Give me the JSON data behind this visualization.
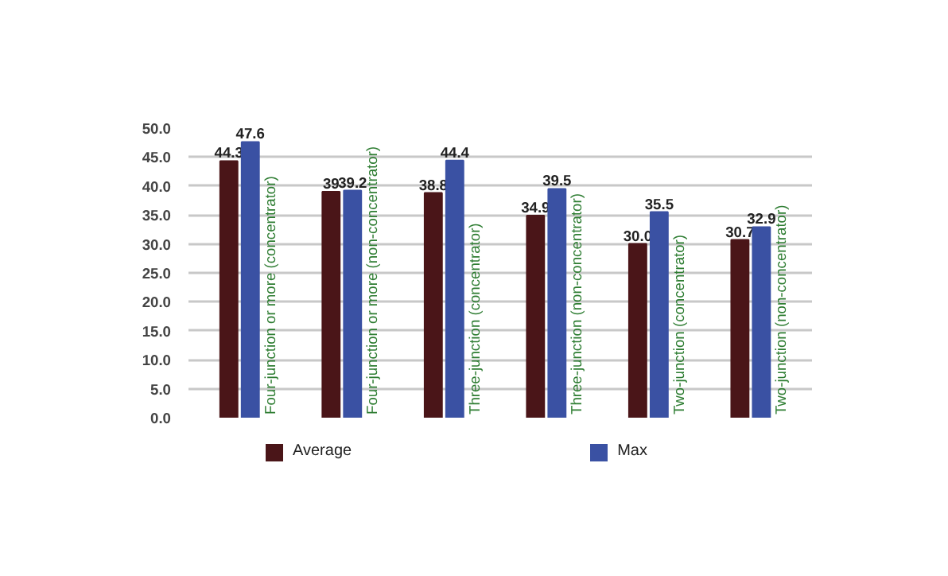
{
  "chart_data": {
    "type": "bar",
    "categories": [
      "Four-junction or more (concentrator)",
      "Four-junction or more (non-concentrator)",
      "Three-junction (concentrator)",
      "Three-junction (non-concentrator)",
      "Two-junction (concentrator)",
      "Two-junction (non-concentrator)"
    ],
    "series": [
      {
        "name": "Average",
        "color": "#4a1518",
        "values": [
          44.3,
          39,
          38.8,
          34.9,
          30.0,
          30.7
        ],
        "value_labels": [
          "44.3",
          "39",
          "38.8",
          "34.9",
          "30.0",
          "30.7"
        ]
      },
      {
        "name": "Max",
        "color": "#3a51a3",
        "values": [
          47.6,
          39.2,
          44.4,
          39.5,
          35.5,
          32.9
        ],
        "value_labels": [
          "47.6",
          "39.2",
          "44.4",
          "39.5",
          "35.5",
          "32.9"
        ]
      }
    ],
    "ylim": [
      0,
      50
    ],
    "yticks": [
      {
        "value": 0,
        "label": "0.0"
      },
      {
        "value": 5,
        "label": "5.0"
      },
      {
        "value": 10,
        "label": "10.0"
      },
      {
        "value": 15,
        "label": "15.0"
      },
      {
        "value": 20,
        "label": "20.0"
      },
      {
        "value": 25,
        "label": "25.0"
      },
      {
        "value": 30,
        "label": "30.0"
      },
      {
        "value": 35,
        "label": "35.0"
      },
      {
        "value": 40,
        "label": "40.0"
      },
      {
        "value": 45,
        "label": "45.0"
      },
      {
        "value": 50,
        "label": "50.0"
      }
    ],
    "grid": "y",
    "legend": "bottom",
    "tick_labels": "y"
  }
}
